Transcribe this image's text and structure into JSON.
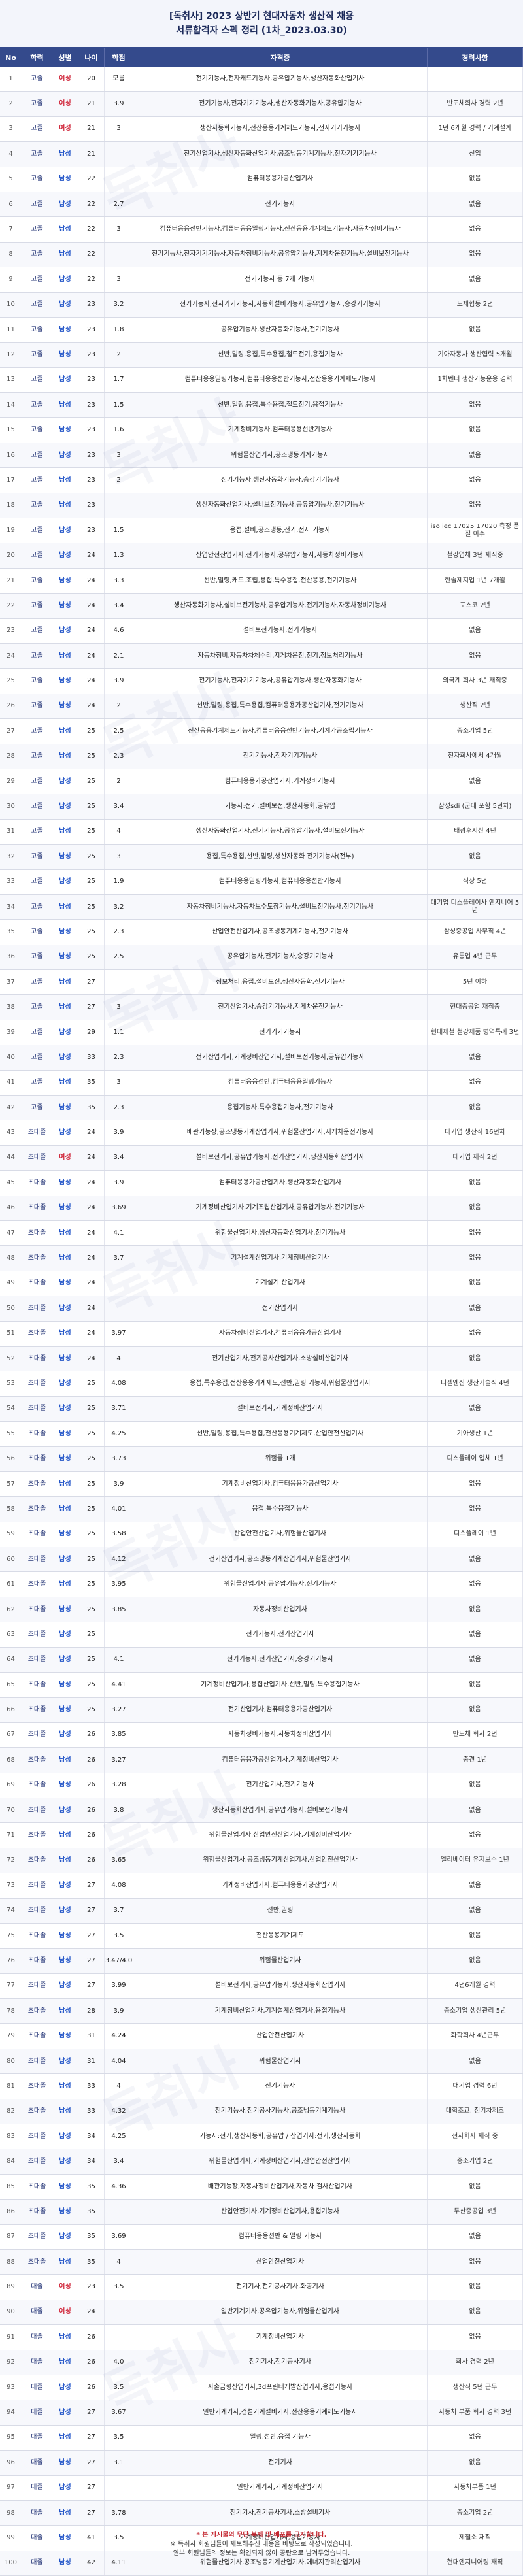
{
  "title": {
    "line1": "[독취사] 2023 상반기 현대자동차 생산직 채용",
    "line2": "서류합격자 스펙 정리 (1차_2023.03.30)"
  },
  "columns": [
    "No",
    "학력",
    "성별",
    "나이",
    "학점",
    "자격증",
    "경력사항"
  ],
  "rows": [
    [
      "1",
      "고졸",
      "여성",
      "20",
      "모름",
      "전기기능사,전자캐드기능사,공유압기능사,생산자동화산업기사",
      ""
    ],
    [
      "2",
      "고졸",
      "여성",
      "21",
      "3.9",
      "전기기능사,전자기기기능사,생산자동화기능사,공유압기능사",
      "반도체회사 경력 2년"
    ],
    [
      "3",
      "고졸",
      "여성",
      "21",
      "3",
      "생산자동화기능사,전산응용기계제도기능사,전자기기기능사",
      "1년 6개월 경력 / 기계설계"
    ],
    [
      "4",
      "고졸",
      "남성",
      "21",
      "",
      "전기산업기사,생산자동화산업기사,공조냉동기계기능사,전자기기기능사",
      "신입"
    ],
    [
      "5",
      "고졸",
      "남성",
      "22",
      "",
      "컴퓨터응용가공산업기사",
      "없음"
    ],
    [
      "6",
      "고졸",
      "남성",
      "22",
      "2.7",
      "전기기능사",
      "없음"
    ],
    [
      "7",
      "고졸",
      "남성",
      "22",
      "3",
      "컴퓨터응용선반기능사,컴퓨터응용밀링기능사,전산응용기계제도기능사,자동차정비기능사",
      "없음"
    ],
    [
      "8",
      "고졸",
      "남성",
      "22",
      "",
      "전기기능사,전자기기기능사,자동차정비기능사,공유압기능사,지게차운전기능사,설비보전기능사",
      "없음"
    ],
    [
      "9",
      "고졸",
      "남성",
      "22",
      "3",
      "전기기능사 등 7개 기능사",
      "없음"
    ],
    [
      "10",
      "고졸",
      "남성",
      "23",
      "3.2",
      "전기기능사,전자기기기능사,자동화설비기능사,공유압기능사,승강기기능사",
      "도제협동 2년"
    ],
    [
      "11",
      "고졸",
      "남성",
      "23",
      "1.8",
      "공유압기능사,생산자동화기능사,전기기능사",
      "없음"
    ],
    [
      "12",
      "고졸",
      "남성",
      "23",
      "2",
      "선반,밀링,용접,특수용접,철도전기,용접기능사",
      "기아자동차 생산협력 5개월"
    ],
    [
      "13",
      "고졸",
      "남성",
      "23",
      "1.7",
      "컴퓨터응용밀링기능사,컴퓨터응용선반기능사,전산응용기계제도기능사",
      "1차벤더 생산기능운용 경력"
    ],
    [
      "14",
      "고졸",
      "남성",
      "23",
      "1.5",
      "선반,밀링,용접,특수용접,철도전기,용접기능사",
      "없음"
    ],
    [
      "15",
      "고졸",
      "남성",
      "23",
      "1.6",
      "기계정비기능사,컴퓨터응용선반기능사",
      "없음"
    ],
    [
      "16",
      "고졸",
      "남성",
      "23",
      "3",
      "위험물산업기사,공조냉동기계기능사",
      "없음"
    ],
    [
      "17",
      "고졸",
      "남성",
      "23",
      "2",
      "전기기능사,생산자동화기능사,승강기기능사",
      "없음"
    ],
    [
      "18",
      "고졸",
      "남성",
      "23",
      "",
      "생산자동화산업기사,설비보전기능사,공유압기능사,전기기능사",
      "없음"
    ],
    [
      "19",
      "고졸",
      "남성",
      "23",
      "1.5",
      "용접,설비,공조냉동,전기,전자 기능사",
      "iso iec 17025 17020 측정 품질 이수"
    ],
    [
      "20",
      "고졸",
      "남성",
      "24",
      "1.3",
      "산업안전산업기사,전기기능사,공유압기능사,자동차정비기능사",
      "철강업체 3년 재직중"
    ],
    [
      "21",
      "고졸",
      "남성",
      "24",
      "3.3",
      "선반,밀링,캐드,조립,용접,특수용접,전산응용,전기기능사",
      "한솔제지업 1년 7개월"
    ],
    [
      "22",
      "고졸",
      "남성",
      "24",
      "3.4",
      "생산자동화기능사,설비보전기능사,공유압기능사,전기기능사,자동차정비기능사",
      "포스코 2년"
    ],
    [
      "23",
      "고졸",
      "남성",
      "24",
      "4.6",
      "설비보전기능사,전기기능사",
      "없음"
    ],
    [
      "24",
      "고졸",
      "남성",
      "24",
      "2.1",
      "자동차정비,자동차차체수리,지게차운전,전기,정보처리기능사",
      "없음"
    ],
    [
      "25",
      "고졸",
      "남성",
      "24",
      "3.9",
      "전기기능사,전자기기기능사,공유압기능사,생산자동화기능사",
      "외국계 회사 3년 재직중"
    ],
    [
      "26",
      "고졸",
      "남성",
      "24",
      "2",
      "선반,밀링,용접,특수용접,컴퓨터응용가공산업기사,전기기능사",
      "생산직 2년"
    ],
    [
      "27",
      "고졸",
      "남성",
      "25",
      "2.5",
      "전산응용기계제도기능사,컴퓨터응용선반기능사,기계가공조립기능사",
      "중소기업 5년"
    ],
    [
      "28",
      "고졸",
      "남성",
      "25",
      "2.3",
      "전기기능사,전자기기기능사",
      "전자회사에서 4개월"
    ],
    [
      "29",
      "고졸",
      "남성",
      "25",
      "2",
      "컴퓨터응용가공산업기사,기계정비기능사",
      "없음"
    ],
    [
      "30",
      "고졸",
      "남성",
      "25",
      "3.4",
      "기능사:전기,설비보전,생산자동화,공유압",
      "삼성sdi (군대 포함 5년차)"
    ],
    [
      "31",
      "고졸",
      "남성",
      "25",
      "4",
      "생산자동화산업기사,전기기능사,공유압기능사,설비보전기능사",
      "태광후지산 4년"
    ],
    [
      "32",
      "고졸",
      "남성",
      "25",
      "3",
      "용접,특수용접,선반,밀링,생산자동화 전기기능사(전부)",
      "없음"
    ],
    [
      "33",
      "고졸",
      "남성",
      "25",
      "1.9",
      "컴퓨터응용밀링기능사,컴퓨터응용선반기능사",
      "직장 5년"
    ],
    [
      "34",
      "고졸",
      "남성",
      "25",
      "3.2",
      "자동차정비기능사,자동차보수도장기능사,설비보전기능사,전기기능사",
      "대기업 디스플레이사 엔지니어 5년"
    ],
    [
      "35",
      "고졸",
      "남성",
      "25",
      "2.3",
      "산업안전산업기사,공조냉동기계기능사,전기기능사",
      "삼성중공업 사무직 4년"
    ],
    [
      "36",
      "고졸",
      "남성",
      "25",
      "2.5",
      "공유압기능사,전기기능사,승강기기능사",
      "유통업 4년 근무"
    ],
    [
      "37",
      "고졸",
      "남성",
      "27",
      "",
      "정보처리,용접,설비보전,생산자동화,전기기능사",
      "5년 이하"
    ],
    [
      "38",
      "고졸",
      "남성",
      "27",
      "3",
      "전기산업기사,승강기기능사,지게차운전기능사",
      "현대중공업 재직중"
    ],
    [
      "39",
      "고졸",
      "남성",
      "29",
      "1.1",
      "전기기기기능사",
      "현대제철 철강제품 병역특례 3년"
    ],
    [
      "40",
      "고졸",
      "남성",
      "33",
      "2.3",
      "전기산업기사,기계정비산업기사,설비보전기능사,공유압기능사",
      "없음"
    ],
    [
      "41",
      "고졸",
      "남성",
      "35",
      "3",
      "컴퓨터응용선반,컴퓨터응용밀링기능사",
      "없음"
    ],
    [
      "42",
      "고졸",
      "남성",
      "35",
      "2.3",
      "용접기능사,특수용접기능사,전기기능사",
      "없음"
    ],
    [
      "43",
      "초대졸",
      "남성",
      "24",
      "3.9",
      "배관기능장,공조냉동기계산업기사,위험물산업기사,지게차운전기능사",
      "대기업 생산직 16년차"
    ],
    [
      "44",
      "초대졸",
      "여성",
      "24",
      "3.4",
      "설비보전기사,공유압기능사,전기산업기사,생산자동화산업기사",
      "대기업 재직 2년"
    ],
    [
      "45",
      "초대졸",
      "남성",
      "24",
      "3.9",
      "컴퓨터응용가공산업기사,생산자동화산업기사",
      "없음"
    ],
    [
      "46",
      "초대졸",
      "남성",
      "24",
      "3.69",
      "기계정비산업기사,기계조립산업기사,공유압기능사,전기기능사",
      "없음"
    ],
    [
      "47",
      "초대졸",
      "남성",
      "24",
      "4.1",
      "위험물산업기사,생산자동화산업기사,전기기능사",
      "없음"
    ],
    [
      "48",
      "초대졸",
      "남성",
      "24",
      "3.7",
      "기계설계산업기사,기계정비산업기사",
      "없음"
    ],
    [
      "49",
      "초대졸",
      "남성",
      "24",
      "",
      "기계설계 산업기사",
      "없음"
    ],
    [
      "50",
      "초대졸",
      "남성",
      "24",
      "",
      "전기산업기사",
      "없음"
    ],
    [
      "51",
      "초대졸",
      "남성",
      "24",
      "3.97",
      "자동차정비산업기사,컴퓨터응용가공산업기사",
      "없음"
    ],
    [
      "52",
      "초대졸",
      "남성",
      "24",
      "4",
      "전기산업기사,전기공사산업기사,소방설비산업기사",
      "없음"
    ],
    [
      "53",
      "초대졸",
      "남성",
      "25",
      "4.08",
      "용접,특수용접,전산응용기계제도,선반,밀링 기능사,위험물산업기사",
      "디젤엔진 생산기술직 4년"
    ],
    [
      "54",
      "초대졸",
      "남성",
      "25",
      "3.71",
      "설비보전기사,기계정비산업기사",
      "없음"
    ],
    [
      "55",
      "초대졸",
      "남성",
      "25",
      "4.25",
      "선반,밀링,용접,특수용접,전산응용기계제도,산업안전산업기사",
      "기아생산 1년"
    ],
    [
      "56",
      "초대졸",
      "남성",
      "25",
      "3.73",
      "위험물 1개",
      "디스플레이 업체 1년"
    ],
    [
      "57",
      "초대졸",
      "남성",
      "25",
      "3.9",
      "기계정비산업기사,컴퓨터응용가공산업기사",
      "없음"
    ],
    [
      "58",
      "초대졸",
      "남성",
      "25",
      "4.01",
      "용접,특수용접기능사",
      "없음"
    ],
    [
      "59",
      "초대졸",
      "남성",
      "25",
      "3.58",
      "산업안전산업기사,위험물산업기사",
      "디스플레이 1년"
    ],
    [
      "60",
      "초대졸",
      "남성",
      "25",
      "4.12",
      "전기산업기사,공조냉동기계산업기사,위험물산업기사",
      "없음"
    ],
    [
      "61",
      "초대졸",
      "남성",
      "25",
      "3.95",
      "위험물산업기사,공유압기능사,전기기능사",
      "없음"
    ],
    [
      "62",
      "초대졸",
      "남성",
      "25",
      "3.85",
      "자동차정비산업기사",
      "없음"
    ],
    [
      "63",
      "초대졸",
      "남성",
      "25",
      "",
      "전기기능사,전기산업기사",
      "없음"
    ],
    [
      "64",
      "초대졸",
      "남성",
      "25",
      "4.1",
      "전기기능사,전기산업기사,승강기기능사",
      "없음"
    ],
    [
      "65",
      "초대졸",
      "남성",
      "25",
      "4.41",
      "기계정비산업기사,용접산업기사,선반,밀링,특수용접기능사",
      "없음"
    ],
    [
      "66",
      "초대졸",
      "남성",
      "25",
      "3.27",
      "전기산업기사,컴퓨터응용가공산업기사",
      "없음"
    ],
    [
      "67",
      "초대졸",
      "남성",
      "26",
      "3.85",
      "자동차정비기능사,자동차정비산업기사",
      "반도체 회사 2년"
    ],
    [
      "68",
      "초대졸",
      "남성",
      "26",
      "3.27",
      "컴퓨터응용가공산업기사,기계정비산업기사",
      "중견 1년"
    ],
    [
      "69",
      "초대졸",
      "남성",
      "26",
      "3.28",
      "전기산업기사,전기기능사",
      "없음"
    ],
    [
      "70",
      "초대졸",
      "남성",
      "26",
      "3.8",
      "생산자동화산업기사,공유압기능사,설비보전기능사",
      "없음"
    ],
    [
      "71",
      "초대졸",
      "남성",
      "26",
      "",
      "위험물산업기사,산업안전산업기사,기계정비산업기사",
      "없음"
    ],
    [
      "72",
      "초대졸",
      "남성",
      "26",
      "3.65",
      "위험물산업기사,공조냉동기계산업기사,산업안전산업기사",
      "엘리베이터 유지보수 1년"
    ],
    [
      "73",
      "초대졸",
      "남성",
      "27",
      "4.08",
      "기계정비산업기사,컴퓨터응용가공산업기사",
      "없음"
    ],
    [
      "74",
      "초대졸",
      "남성",
      "27",
      "3.7",
      "선반,밀링",
      "없음"
    ],
    [
      "75",
      "초대졸",
      "남성",
      "27",
      "3.5",
      "전산응용기계제도",
      "없음"
    ],
    [
      "76",
      "초대졸",
      "남성",
      "27",
      "3.47/4.0",
      "위험물산업기사",
      "없음"
    ],
    [
      "77",
      "초대졸",
      "남성",
      "27",
      "3.99",
      "설비보전기사,공유압기능사,생산자동화산업기사",
      "4년6개월 경력"
    ],
    [
      "78",
      "초대졸",
      "남성",
      "28",
      "3.9",
      "기계정비산업기사,기계설계산업기사,용접기능사",
      "중소기업 생산관리 5년"
    ],
    [
      "79",
      "초대졸",
      "남성",
      "31",
      "4.24",
      "산업안전산업기사",
      "화학회사 4년근무"
    ],
    [
      "80",
      "초대졸",
      "남성",
      "31",
      "4.04",
      "위험물산업기사",
      "없음"
    ],
    [
      "81",
      "초대졸",
      "남성",
      "33",
      "4",
      "전기기능사",
      "대기업 경력 6년"
    ],
    [
      "82",
      "초대졸",
      "남성",
      "33",
      "4.32",
      "전기기능사,전기공사기능사,공조냉동기계기능사",
      "대학조교, 전기차제조"
    ],
    [
      "83",
      "초대졸",
      "남성",
      "34",
      "4.25",
      "기능사:전기,생산자동화,공유압 / 산업기사:전기,생산자동화",
      "전자회사 재직 중"
    ],
    [
      "84",
      "초대졸",
      "남성",
      "34",
      "3.4",
      "위험물산업기사,기계정비산업기사,산업안전산업기사",
      "중소기업 2년"
    ],
    [
      "85",
      "초대졸",
      "남성",
      "35",
      "4.36",
      "배관기능장,자동차정비산업기사,자동차 검사산업기사",
      "없음"
    ],
    [
      "86",
      "초대졸",
      "남성",
      "35",
      "",
      "산업안전기사,기계정비산업기사,용접기능사",
      "두산중공업 3년"
    ],
    [
      "87",
      "초대졸",
      "남성",
      "35",
      "3.69",
      "컴퓨터응용선반 & 밀링 기능사",
      "없음"
    ],
    [
      "88",
      "초대졸",
      "남성",
      "35",
      "4",
      "산업안전산업기사",
      "없음"
    ],
    [
      "89",
      "대졸",
      "여성",
      "23",
      "3.5",
      "전기기사,전기공사기사,화공기사",
      "없음"
    ],
    [
      "90",
      "대졸",
      "여성",
      "24",
      "",
      "일반기계기사,공유압기능사,위험물산업기사",
      "없음"
    ],
    [
      "91",
      "대졸",
      "남성",
      "26",
      "",
      "기계정비산업기사",
      "없음"
    ],
    [
      "92",
      "대졸",
      "남성",
      "26",
      "4.0",
      "전기기사,전기공사기사",
      "회사 경력 2년"
    ],
    [
      "93",
      "대졸",
      "남성",
      "26",
      "3.5",
      "사출금형산업기사,3d프린터개발산업기사,용접기능사",
      "생산직 5년 근무"
    ],
    [
      "94",
      "대졸",
      "남성",
      "27",
      "3.67",
      "일반기계기사,건설기계설비기사,전산응용기계제도기능사",
      "자동차 부품 회사 경력 3년"
    ],
    [
      "95",
      "대졸",
      "남성",
      "27",
      "3.5",
      "밀링,선반,용접 기능사",
      "없음"
    ],
    [
      "96",
      "대졸",
      "남성",
      "27",
      "3.1",
      "전기기사",
      "없음"
    ],
    [
      "97",
      "대졸",
      "남성",
      "27",
      "",
      "일반기계기사,기계정비산업기사",
      "자동차부품 1년"
    ],
    [
      "98",
      "대졸",
      "남성",
      "27",
      "3.78",
      "전기기사,전기공사기사,소방설비기사",
      "중소기업 2년"
    ],
    [
      "99",
      "대졸",
      "남성",
      "41",
      "3.5",
      "기계정비산업기사,용접기능사",
      "제철소 재직"
    ],
    [
      "100",
      "대졸",
      "남성",
      "42",
      "4.11",
      "위험물산업기사,공조냉동기계산업기사,에너지관리산업기사",
      "현대엔지니어링 재직"
    ]
  ],
  "footnote": {
    "line1": "* 본 게시물의 무단 복제 및 배포를 금지합니다.",
    "line2": "※ 독취사 회원님들이 제보해주신 내용을 바탕으로 작성되었습니다.",
    "line3": "일부 회원님들의 정보는 확인되지 않아 공란으로 남겨두었습니다."
  },
  "watermark": "독취사",
  "colors": {
    "header": "#344a8c",
    "male": "#2456c8",
    "female": "#d0263a"
  }
}
